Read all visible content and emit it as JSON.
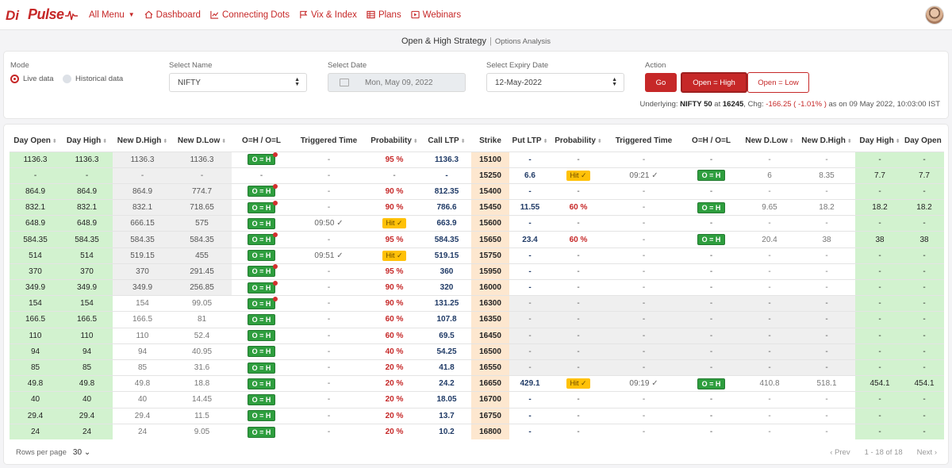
{
  "nav": {
    "logo_text": "Pulse",
    "all_menu": "All Menu",
    "items": [
      {
        "label": "Dashboard",
        "icon": "home-icon"
      },
      {
        "label": "Connecting Dots",
        "icon": "chart-icon"
      },
      {
        "label": "Vix & Index",
        "icon": "flag-icon"
      },
      {
        "label": "Plans",
        "icon": "table-icon"
      },
      {
        "label": "Webinars",
        "icon": "video-icon"
      }
    ]
  },
  "page": {
    "title": "Open & High Strategy",
    "subtitle": "Options Analysis"
  },
  "filters": {
    "mode_label": "Mode",
    "mode_live": "Live data",
    "mode_hist": "Historical data",
    "name_label": "Select Name",
    "name_value": "NIFTY",
    "date_label": "Select Date",
    "date_value": "Mon, May 09, 2022",
    "expiry_label": "Select Expiry Date",
    "expiry_value": "12-May-2022",
    "action_label": "Action",
    "go": "Go",
    "open_high": "Open = High",
    "open_low": "Open = Low"
  },
  "underlying": {
    "prefix": "Underlying:",
    "name": "NIFTY 50",
    "at": "at",
    "price": "16245",
    "chg_label": ", Chg:",
    "chg": "-166.25 ( -1.01% )",
    "asof": "as on 09 May 2022, 10:03:00 IST"
  },
  "table": {
    "headers": [
      "Day Open",
      "Day High",
      "New D.High",
      "New D.Low",
      "O=H / O=L",
      "Triggered Time",
      "Probability",
      "Call LTP",
      "Strike",
      "Put LTP",
      "Probability",
      "Triggered Time",
      "O=H / O=L",
      "New D.Low",
      "New D.High",
      "Day High",
      "Day Open"
    ],
    "rows": [
      {
        "c_open": "1136.3",
        "c_high": "1136.3",
        "c_ndh": "1136.3",
        "c_ndl": "1136.3",
        "c_oh": "O = H",
        "c_dot": true,
        "c_trig": "-",
        "c_prob": "95 %",
        "c_ltp": "1136.3",
        "strike": "15100",
        "p_ltp": "-",
        "p_prob": "-",
        "p_trig": "-",
        "p_oh": "-",
        "p_ndl": "-",
        "p_ndh": "-",
        "p_high": "-",
        "p_open": "-"
      },
      {
        "c_open": "-",
        "c_high": "-",
        "c_ndh": "-",
        "c_ndl": "-",
        "c_oh": "-",
        "c_dot": false,
        "c_trig": "-",
        "c_prob": "-",
        "c_ltp": "-",
        "strike": "15250",
        "p_ltp": "6.6",
        "p_prob": "Hit ✓",
        "p_trig": "09:21 ✓",
        "p_oh": "O = H",
        "p_ndl": "6",
        "p_ndh": "8.35",
        "p_high": "7.7",
        "p_open": "7.7"
      },
      {
        "c_open": "864.9",
        "c_high": "864.9",
        "c_ndh": "864.9",
        "c_ndl": "774.7",
        "c_oh": "O = H",
        "c_dot": true,
        "c_trig": "-",
        "c_prob": "90 %",
        "c_ltp": "812.35",
        "strike": "15400",
        "p_ltp": "-",
        "p_prob": "-",
        "p_trig": "-",
        "p_oh": "-",
        "p_ndl": "-",
        "p_ndh": "-",
        "p_high": "-",
        "p_open": "-"
      },
      {
        "c_open": "832.1",
        "c_high": "832.1",
        "c_ndh": "832.1",
        "c_ndl": "718.65",
        "c_oh": "O = H",
        "c_dot": true,
        "c_trig": "-",
        "c_prob": "90 %",
        "c_ltp": "786.6",
        "strike": "15450",
        "p_ltp": "11.55",
        "p_prob": "60 %",
        "p_trig": "-",
        "p_oh": "O = H",
        "p_ndl": "9.65",
        "p_ndh": "18.2",
        "p_high": "18.2",
        "p_open": "18.2"
      },
      {
        "c_open": "648.9",
        "c_high": "648.9",
        "c_ndh": "666.15",
        "c_ndl": "575",
        "c_oh": "O = H",
        "c_dot": false,
        "c_trig": "09:50 ✓",
        "c_prob": "Hit ✓",
        "c_ltp": "663.9",
        "strike": "15600",
        "p_ltp": "-",
        "p_prob": "-",
        "p_trig": "-",
        "p_oh": "-",
        "p_ndl": "-",
        "p_ndh": "-",
        "p_high": "-",
        "p_open": "-"
      },
      {
        "c_open": "584.35",
        "c_high": "584.35",
        "c_ndh": "584.35",
        "c_ndl": "584.35",
        "c_oh": "O = H",
        "c_dot": true,
        "c_trig": "-",
        "c_prob": "95 %",
        "c_ltp": "584.35",
        "strike": "15650",
        "p_ltp": "23.4",
        "p_prob": "60 %",
        "p_trig": "-",
        "p_oh": "O = H",
        "p_ndl": "20.4",
        "p_ndh": "38",
        "p_high": "38",
        "p_open": "38"
      },
      {
        "c_open": "514",
        "c_high": "514",
        "c_ndh": "519.15",
        "c_ndl": "455",
        "c_oh": "O = H",
        "c_dot": false,
        "c_trig": "09:51 ✓",
        "c_prob": "Hit ✓",
        "c_ltp": "519.15",
        "strike": "15750",
        "p_ltp": "-",
        "p_prob": "-",
        "p_trig": "-",
        "p_oh": "-",
        "p_ndl": "-",
        "p_ndh": "-",
        "p_high": "-",
        "p_open": "-"
      },
      {
        "c_open": "370",
        "c_high": "370",
        "c_ndh": "370",
        "c_ndl": "291.45",
        "c_oh": "O = H",
        "c_dot": true,
        "c_trig": "-",
        "c_prob": "95 %",
        "c_ltp": "360",
        "strike": "15950",
        "p_ltp": "-",
        "p_prob": "-",
        "p_trig": "-",
        "p_oh": "-",
        "p_ndl": "-",
        "p_ndh": "-",
        "p_high": "-",
        "p_open": "-"
      },
      {
        "c_open": "349.9",
        "c_high": "349.9",
        "c_ndh": "349.9",
        "c_ndl": "256.85",
        "c_oh": "O = H",
        "c_dot": true,
        "c_trig": "-",
        "c_prob": "90 %",
        "c_ltp": "320",
        "strike": "16000",
        "p_ltp": "-",
        "p_prob": "-",
        "p_trig": "-",
        "p_oh": "-",
        "p_ndl": "-",
        "p_ndh": "-",
        "p_high": "-",
        "p_open": "-"
      },
      {
        "c_open": "154",
        "c_high": "154",
        "c_ndh": "154",
        "c_ndl": "99.05",
        "c_oh": "O = H",
        "c_dot": true,
        "c_trig": "-",
        "c_prob": "90 %",
        "c_ltp": "131.25",
        "strike": "16300",
        "p_ltp": "-",
        "p_prob": "-",
        "p_trig": "-",
        "p_oh": "-",
        "p_ndl": "-",
        "p_ndh": "-",
        "p_high": "-",
        "p_open": "-"
      },
      {
        "c_open": "166.5",
        "c_high": "166.5",
        "c_ndh": "166.5",
        "c_ndl": "81",
        "c_oh": "O = H",
        "c_dot": false,
        "c_trig": "-",
        "c_prob": "60 %",
        "c_ltp": "107.8",
        "strike": "16350",
        "p_ltp": "-",
        "p_prob": "-",
        "p_trig": "-",
        "p_oh": "-",
        "p_ndl": "-",
        "p_ndh": "-",
        "p_high": "-",
        "p_open": "-"
      },
      {
        "c_open": "110",
        "c_high": "110",
        "c_ndh": "110",
        "c_ndl": "52.4",
        "c_oh": "O = H",
        "c_dot": false,
        "c_trig": "-",
        "c_prob": "60 %",
        "c_ltp": "69.5",
        "strike": "16450",
        "p_ltp": "-",
        "p_prob": "-",
        "p_trig": "-",
        "p_oh": "-",
        "p_ndl": "-",
        "p_ndh": "-",
        "p_high": "-",
        "p_open": "-"
      },
      {
        "c_open": "94",
        "c_high": "94",
        "c_ndh": "94",
        "c_ndl": "40.95",
        "c_oh": "O = H",
        "c_dot": false,
        "c_trig": "-",
        "c_prob": "40 %",
        "c_ltp": "54.25",
        "strike": "16500",
        "p_ltp": "-",
        "p_prob": "-",
        "p_trig": "-",
        "p_oh": "-",
        "p_ndl": "-",
        "p_ndh": "-",
        "p_high": "-",
        "p_open": "-"
      },
      {
        "c_open": "85",
        "c_high": "85",
        "c_ndh": "85",
        "c_ndl": "31.6",
        "c_oh": "O = H",
        "c_dot": false,
        "c_trig": "-",
        "c_prob": "20 %",
        "c_ltp": "41.8",
        "strike": "16550",
        "p_ltp": "-",
        "p_prob": "-",
        "p_trig": "-",
        "p_oh": "-",
        "p_ndl": "-",
        "p_ndh": "-",
        "p_high": "-",
        "p_open": "-"
      },
      {
        "c_open": "49.8",
        "c_high": "49.8",
        "c_ndh": "49.8",
        "c_ndl": "18.8",
        "c_oh": "O = H",
        "c_dot": false,
        "c_trig": "-",
        "c_prob": "20 %",
        "c_ltp": "24.2",
        "strike": "16650",
        "p_ltp": "429.1",
        "p_prob": "Hit ✓",
        "p_trig": "09:19 ✓",
        "p_oh": "O = H",
        "p_ndl": "410.8",
        "p_ndh": "518.1",
        "p_high": "454.1",
        "p_open": "454.1"
      },
      {
        "c_open": "40",
        "c_high": "40",
        "c_ndh": "40",
        "c_ndl": "14.45",
        "c_oh": "O = H",
        "c_dot": false,
        "c_trig": "-",
        "c_prob": "20 %",
        "c_ltp": "18.05",
        "strike": "16700",
        "p_ltp": "-",
        "p_prob": "-",
        "p_trig": "-",
        "p_oh": "-",
        "p_ndl": "-",
        "p_ndh": "-",
        "p_high": "-",
        "p_open": "-"
      },
      {
        "c_open": "29.4",
        "c_high": "29.4",
        "c_ndh": "29.4",
        "c_ndl": "11.5",
        "c_oh": "O = H",
        "c_dot": false,
        "c_trig": "-",
        "c_prob": "20 %",
        "c_ltp": "13.7",
        "strike": "16750",
        "p_ltp": "-",
        "p_prob": "-",
        "p_trig": "-",
        "p_oh": "-",
        "p_ndl": "-",
        "p_ndh": "-",
        "p_high": "-",
        "p_open": "-"
      },
      {
        "c_open": "24",
        "c_high": "24",
        "c_ndh": "24",
        "c_ndl": "9.05",
        "c_oh": "O = H",
        "c_dot": false,
        "c_trig": "-",
        "c_prob": "20 %",
        "c_ltp": "10.2",
        "strike": "16800",
        "p_ltp": "-",
        "p_prob": "-",
        "p_trig": "-",
        "p_oh": "-",
        "p_ndl": "-",
        "p_ndh": "-",
        "p_high": "-",
        "p_open": "-"
      }
    ]
  },
  "pager": {
    "rows_label": "Rows per page",
    "rows_value": "30",
    "prev": "‹ Prev",
    "range": "1 - 18 of 18",
    "next": "Next ›"
  },
  "colors": {
    "brand": "#c62828",
    "green_cell": "#d2f2cf",
    "strike_cell": "#fde7cf",
    "badge_green": "#2e9e3e",
    "hit_yellow": "#ffc107"
  }
}
